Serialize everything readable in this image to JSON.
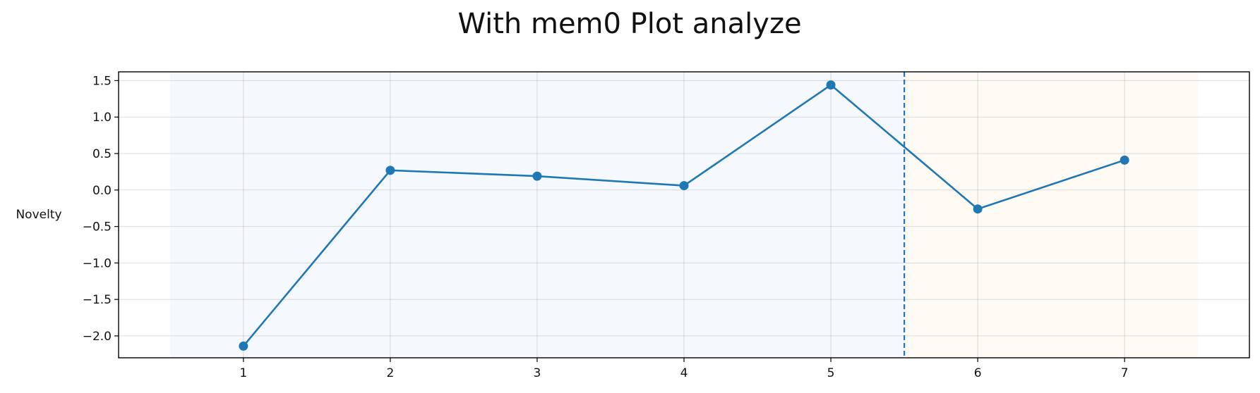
{
  "chart_data": {
    "type": "line",
    "title": "With mem0 Plot analyze",
    "xlabel": "",
    "ylabel": "Novelty",
    "x": [
      1,
      2,
      3,
      4,
      5,
      6,
      7
    ],
    "series": [
      {
        "values": [
          -2.14,
          0.27,
          0.19,
          0.06,
          1.44,
          -0.26,
          0.41
        ],
        "color": "#1f77b4"
      }
    ],
    "xlim": [
      0.15,
      7.85
    ],
    "ylim": [
      -2.3,
      1.62
    ],
    "x_ticks": [
      1,
      2,
      3,
      4,
      5,
      6,
      7
    ],
    "y_ticks": [
      1.5,
      1.0,
      0.5,
      0.0,
      -0.5,
      -1.0,
      -1.5,
      -2.0
    ],
    "y_tick_labels": [
      "1.5",
      "1.0",
      "0.5",
      "0.0",
      "−0.5",
      "−1.0",
      "−1.5",
      "−2.0"
    ],
    "grid": true,
    "shaded_regions": [
      {
        "x_start": 0.5,
        "x_end": 5.5,
        "color": "#f5f8fd"
      },
      {
        "x_start": 5.5,
        "x_end": 7.5,
        "color": "#fffaf4"
      }
    ],
    "vertical_line": {
      "x": 5.5,
      "style": "dashed",
      "color": "#1f77b4"
    }
  }
}
